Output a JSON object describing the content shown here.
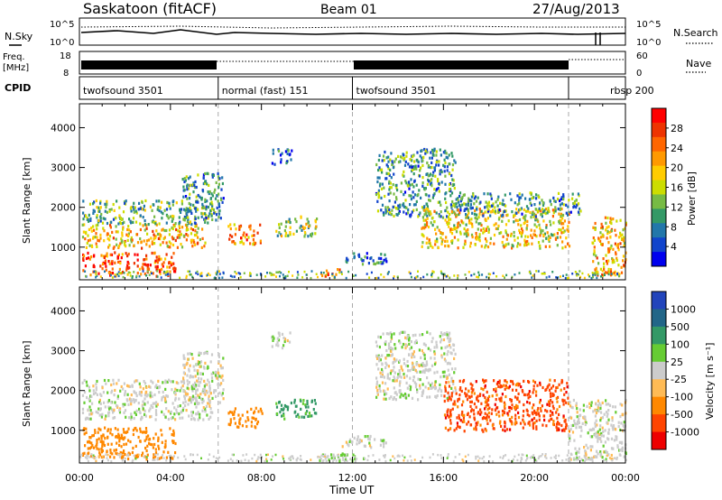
{
  "header": {
    "station": "Saskatoon (fitACF)",
    "beam": "Beam 01",
    "date": "27/Aug/2013"
  },
  "noise_panel": {
    "left_label": "N.Sky",
    "right_label": "N.Search",
    "left_ticks": [
      "10^5",
      "10^0"
    ],
    "right_ticks": [
      "10^5",
      "10^0"
    ]
  },
  "freq_panel": {
    "left_label_line1": "Freq.",
    "left_label_line2": "[MHz]",
    "right_label": "Nave",
    "left_ticks": [
      "18",
      "8"
    ],
    "right_ticks": [
      "60",
      "0"
    ]
  },
  "cpid_panel": {
    "label": "CPID",
    "segments": [
      {
        "label": "twofsound 3501",
        "start": 0,
        "end": 6.1
      },
      {
        "label": "normal (fast) 151",
        "start": 6.1,
        "end": 12.0
      },
      {
        "label": "twofsound 3501",
        "start": 12.0,
        "end": 21.5
      },
      {
        "label": "rbsp 200",
        "start": 21.5,
        "end": 24
      }
    ]
  },
  "x_axis": {
    "title": "Time UT",
    "ticks": [
      "00:00",
      "04:00",
      "08:00",
      "12:00",
      "16:00",
      "20:00",
      "00:00"
    ]
  },
  "chart_data": [
    {
      "type": "heatmap",
      "quantity": "power",
      "ylabel": "Slant Range [km]",
      "xlabel": "",
      "xlim": [
        0,
        24
      ],
      "ylim": [
        180,
        4600
      ],
      "yticks": [
        1000,
        2000,
        3000,
        4000
      ],
      "colorbar": {
        "label": "Power [dB]",
        "ticks": [
          "28",
          "24",
          "20",
          "16",
          "12",
          "8",
          "4"
        ],
        "colors": [
          "#ff0000",
          "#ee3300",
          "#ff6600",
          "#ff9900",
          "#ffcc00",
          "#ccdd00",
          "#77bb44",
          "#339966",
          "#2277aa",
          "#1144cc",
          "#0000ee"
        ]
      },
      "regions": [
        {
          "t0": 0.1,
          "t1": 4.2,
          "r0": 300,
          "r1": 900,
          "level": 26
        },
        {
          "t0": 0.1,
          "t1": 5.5,
          "r0": 1000,
          "r1": 1600,
          "level": 20
        },
        {
          "t0": 0.1,
          "t1": 5.8,
          "r0": 1600,
          "r1": 2200,
          "level": 12
        },
        {
          "t0": 4.5,
          "t1": 6.3,
          "r0": 1700,
          "r1": 2900,
          "level": 10
        },
        {
          "t0": 6.5,
          "t1": 8.0,
          "r0": 1100,
          "r1": 1600,
          "level": 22
        },
        {
          "t0": 8.4,
          "t1": 9.3,
          "r0": 3100,
          "r1": 3500,
          "level": 6
        },
        {
          "t0": 8.6,
          "t1": 10.4,
          "r0": 1300,
          "r1": 1800,
          "level": 14
        },
        {
          "t0": 10.5,
          "t1": 11.5,
          "r0": 300,
          "r1": 500,
          "level": 26
        },
        {
          "t0": 11.5,
          "t1": 13.5,
          "r0": 600,
          "r1": 900,
          "level": 8
        },
        {
          "t0": 13.0,
          "t1": 16.5,
          "r0": 1800,
          "r1": 3500,
          "level": 10
        },
        {
          "t0": 15.0,
          "t1": 21.5,
          "r0": 1000,
          "r1": 2000,
          "level": 18
        },
        {
          "t0": 16.5,
          "t1": 22.0,
          "r0": 1800,
          "r1": 2400,
          "level": 10
        },
        {
          "t0": 22.5,
          "t1": 24.0,
          "r0": 300,
          "r1": 1800,
          "level": 20
        }
      ]
    },
    {
      "type": "heatmap",
      "quantity": "velocity",
      "ylabel": "Slant Range [km]",
      "xlabel": "Time UT",
      "xlim": [
        0,
        24
      ],
      "ylim": [
        180,
        4600
      ],
      "yticks": [
        1000,
        2000,
        3000,
        4000
      ],
      "colorbar": {
        "label": "Velocity [m s⁻¹]",
        "ticks": [
          "1000",
          "500",
          "100",
          "25",
          "-25",
          "-100",
          "-500",
          "-1000"
        ],
        "colors": [
          "#2244bb",
          "#226688",
          "#339966",
          "#66cc33",
          "#cccccc",
          "#ffbb55",
          "#ff8800",
          "#ff4400",
          "#ee0000"
        ]
      },
      "regions": [
        {
          "t0": 0.1,
          "t1": 4.2,
          "r0": 300,
          "r1": 1100,
          "level": -200
        },
        {
          "t0": 0.1,
          "t1": 5.8,
          "r0": 1300,
          "r1": 2300,
          "level": 0
        },
        {
          "t0": 4.5,
          "t1": 6.3,
          "r0": 1700,
          "r1": 3000,
          "level": 0
        },
        {
          "t0": 6.5,
          "t1": 8.0,
          "r0": 1100,
          "r1": 1600,
          "level": -300
        },
        {
          "t0": 8.4,
          "t1": 9.3,
          "r0": 3100,
          "r1": 3500,
          "level": 0
        },
        {
          "t0": 8.6,
          "t1": 10.4,
          "r0": 1300,
          "r1": 1800,
          "level": 150
        },
        {
          "t0": 10.5,
          "t1": 12.5,
          "r0": 250,
          "r1": 450,
          "level": 60
        },
        {
          "t0": 11.5,
          "t1": 13.5,
          "r0": 600,
          "r1": 900,
          "level": 0
        },
        {
          "t0": 13.0,
          "t1": 16.5,
          "r0": 1800,
          "r1": 3500,
          "level": 0
        },
        {
          "t0": 16.0,
          "t1": 21.5,
          "r0": 1000,
          "r1": 2300,
          "level": -700
        },
        {
          "t0": 21.5,
          "t1": 24.0,
          "r0": 300,
          "r1": 1800,
          "level": 0
        }
      ]
    }
  ]
}
